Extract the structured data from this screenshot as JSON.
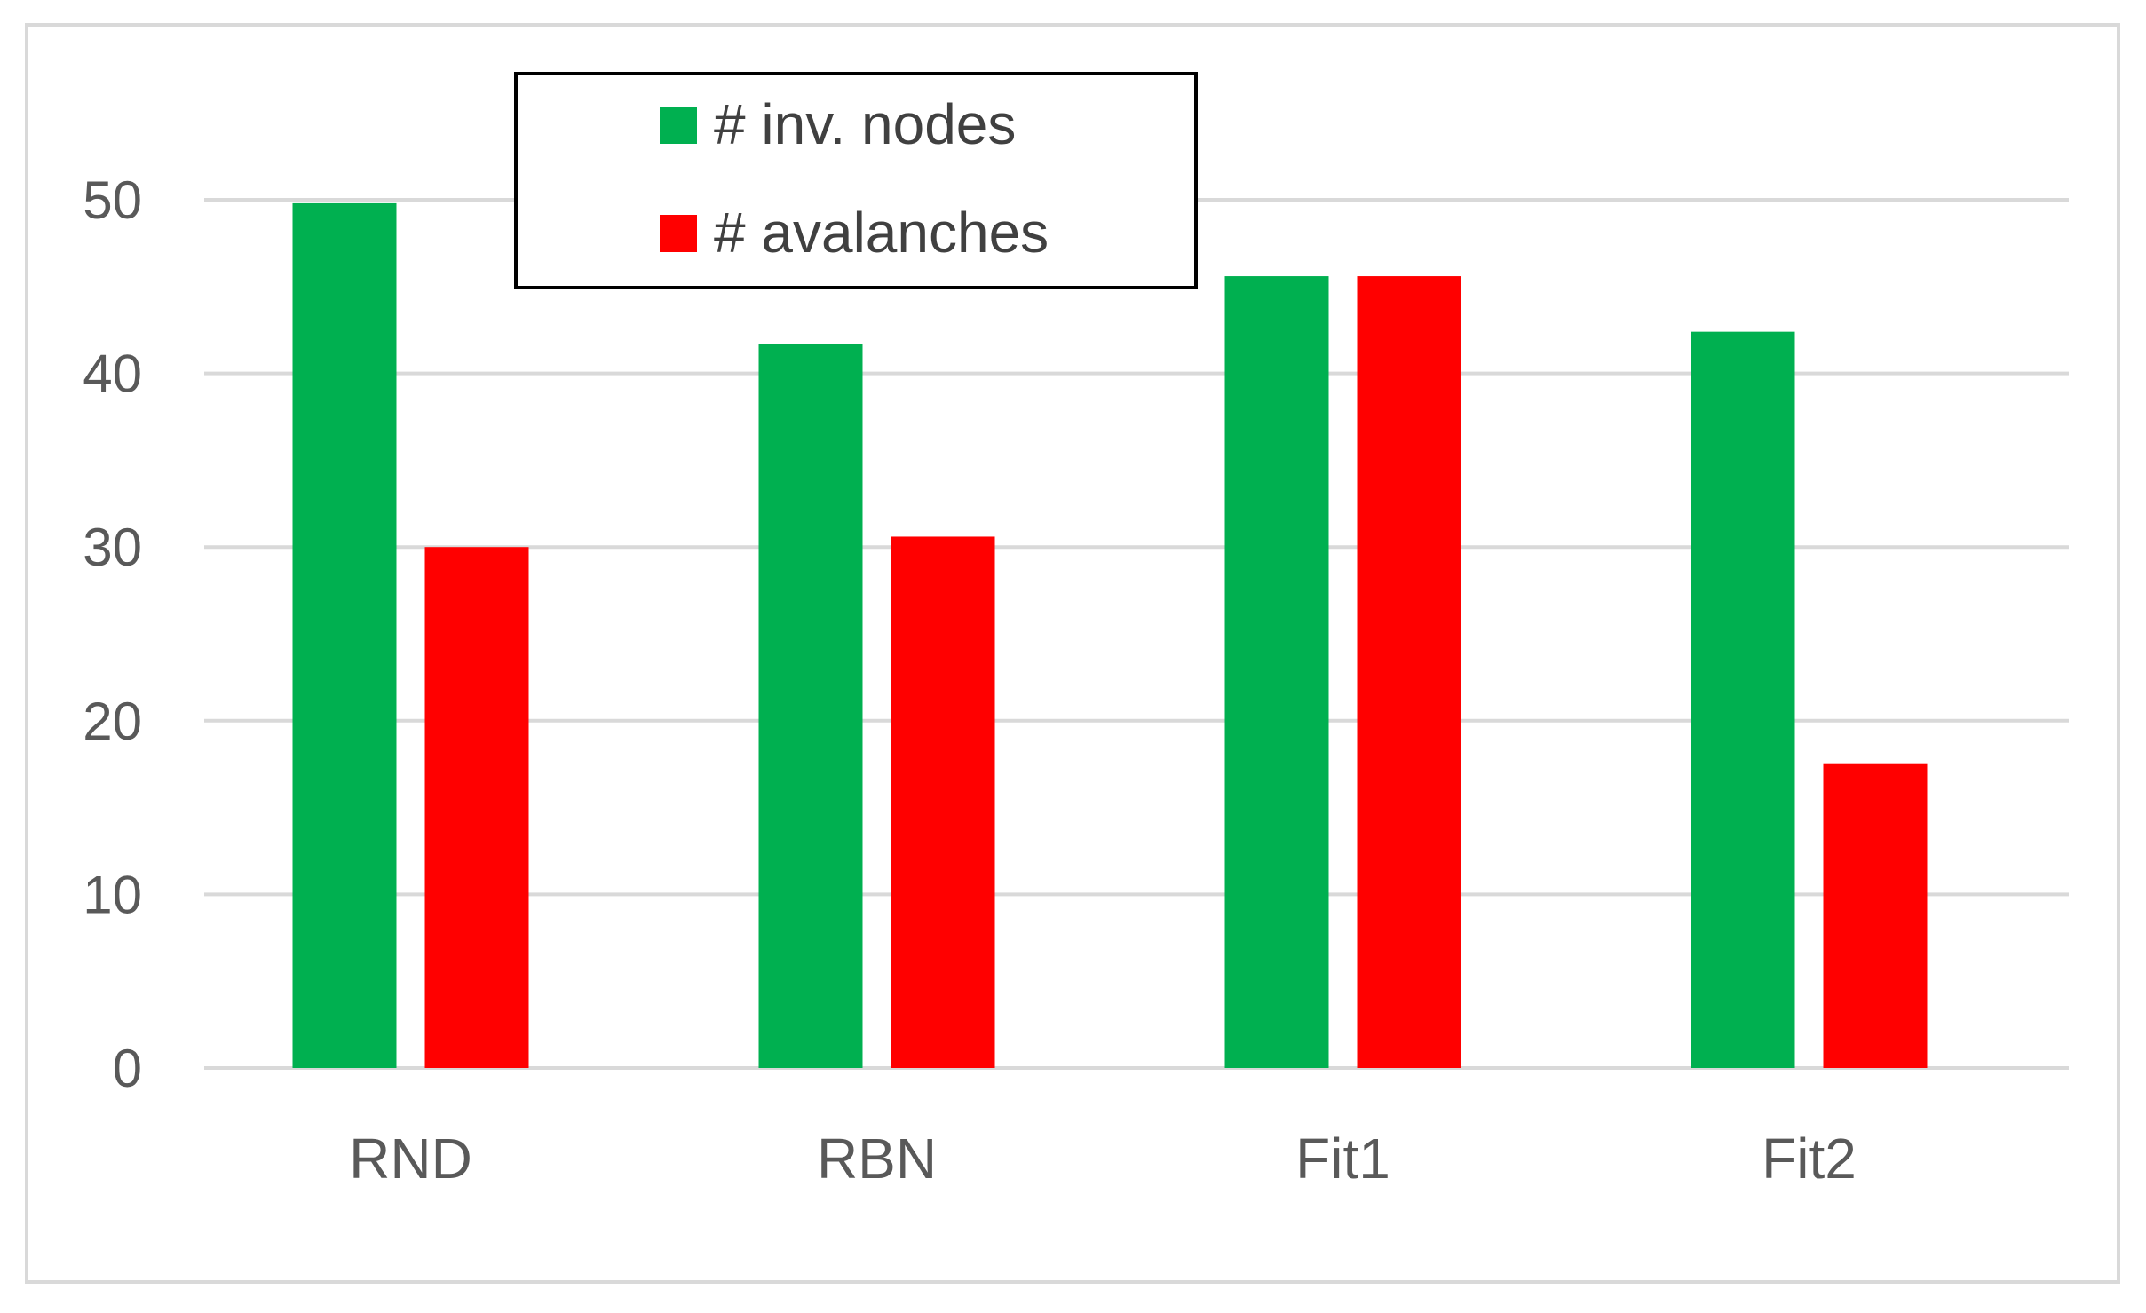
{
  "chart_data": {
    "type": "bar",
    "categories": [
      "RND",
      "RBN",
      "Fit1",
      "Fit2"
    ],
    "series": [
      {
        "name": "# inv. nodes",
        "color": "#00b050",
        "values": [
          49.8,
          41.7,
          45.6,
          42.4
        ]
      },
      {
        "name": "# avalanches",
        "color": "#ff0000",
        "values": [
          30.0,
          30.6,
          45.6,
          17.5
        ]
      }
    ],
    "yticks": [
      0,
      10,
      20,
      30,
      40,
      50
    ],
    "ylim": [
      0,
      50
    ],
    "grid": true,
    "legend_position": "top-left"
  }
}
